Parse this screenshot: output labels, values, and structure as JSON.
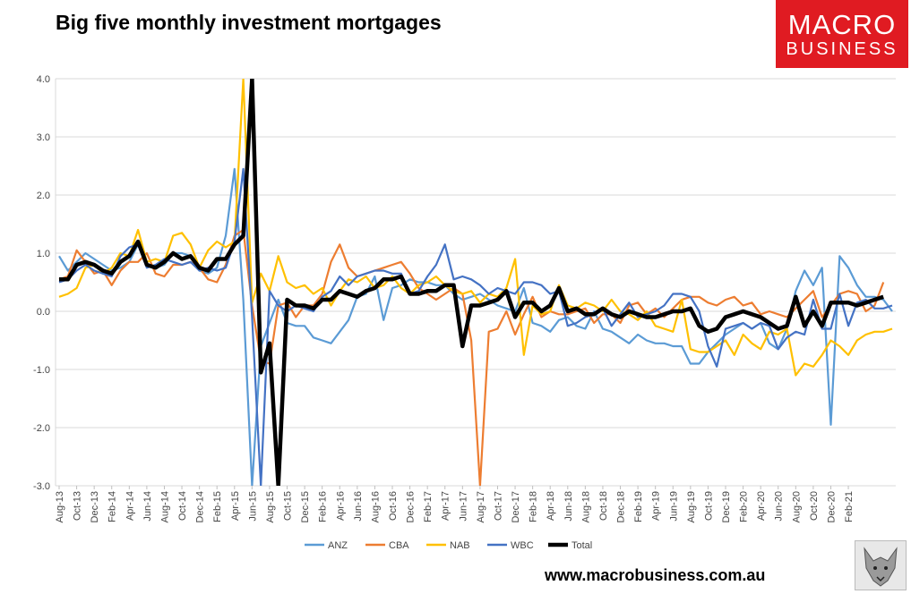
{
  "header": {
    "title": "Big five monthly investment mortgages"
  },
  "logo": {
    "line1": "MACRO",
    "line2": "BUSINESS"
  },
  "footer": {
    "url": "www.macrobusiness.com.au"
  },
  "colors": {
    "ANZ": "#5b9bd5",
    "CBA": "#ed7d31",
    "NAB": "#ffc000",
    "WBC": "#4472c4",
    "Total": "#000000",
    "logo_bg": "#e01b22"
  },
  "chart_data": {
    "type": "line",
    "title": "Big five monthly investment mortgages",
    "xlabel": "",
    "ylabel": "",
    "ylim": [
      -3.0,
      4.0
    ],
    "yticks": [
      "4.0",
      "3.0",
      "2.0",
      "1.0",
      "0.0",
      "-1.0",
      "-2.0",
      "-3.0"
    ],
    "grid": true,
    "legend_position": "bottom",
    "x_tick_labels": [
      "Aug-13",
      "Oct-13",
      "Dec-13",
      "Feb-14",
      "Apr-14",
      "Jun-14",
      "Aug-14",
      "Oct-14",
      "Dec-14",
      "Feb-15",
      "Apr-15",
      "Jun-15",
      "Aug-15",
      "Oct-15",
      "Dec-15",
      "Feb-16",
      "Apr-16",
      "Jun-16",
      "Aug-16",
      "Oct-16",
      "Dec-16",
      "Feb-17",
      "Apr-17",
      "Jun-17",
      "Aug-17",
      "Oct-17",
      "Dec-17",
      "Feb-18",
      "Apr-18",
      "Jun-18",
      "Aug-18",
      "Oct-18",
      "Dec-18",
      "Feb-19",
      "Apr-19",
      "Jun-19",
      "Aug-19",
      "Oct-19",
      "Dec-19",
      "Feb-20",
      "Apr-20",
      "Jun-20",
      "Aug-20",
      "Oct-20",
      "Dec-20",
      "Feb-21"
    ],
    "series": [
      {
        "name": "ANZ",
        "values": [
          0.95,
          0.7,
          0.85,
          1.0,
          0.9,
          0.8,
          0.7,
          0.75,
          0.85,
          1.15,
          0.8,
          0.75,
          0.8,
          1.0,
          1.0,
          0.95,
          0.7,
          0.65,
          0.75,
          1.3,
          2.45,
          0.2,
          -3.0,
          -0.6,
          -0.2,
          0.2,
          -0.2,
          -0.25,
          -0.25,
          -0.45,
          -0.5,
          -0.55,
          -0.35,
          -0.15,
          0.25,
          0.3,
          0.6,
          -0.15,
          0.4,
          0.45,
          0.55,
          0.5,
          0.5,
          0.45,
          0.45,
          0.3,
          0.2,
          0.25,
          0.3,
          0.2,
          0.1,
          0.05,
          0.0,
          0.4,
          -0.2,
          -0.25,
          -0.35,
          -0.15,
          -0.1,
          -0.25,
          -0.3,
          0.0,
          -0.3,
          -0.35,
          -0.45,
          -0.55,
          -0.4,
          -0.5,
          -0.55,
          -0.55,
          -0.6,
          -0.6,
          -0.9,
          -0.9,
          -0.7,
          -0.55,
          -0.4,
          -0.3,
          -0.2,
          -0.3,
          -0.2,
          -0.55,
          -0.65,
          -0.3,
          0.35,
          0.7,
          0.45,
          0.75,
          -1.95,
          0.95,
          0.75,
          0.45,
          0.25,
          0.25,
          0.2,
          0.0
        ]
      },
      {
        "name": "CBA",
        "values": [
          0.55,
          0.6,
          1.05,
          0.85,
          0.65,
          0.7,
          0.45,
          0.7,
          0.85,
          0.85,
          1.0,
          0.65,
          0.6,
          0.8,
          0.8,
          0.85,
          0.75,
          0.55,
          0.5,
          0.8,
          1.3,
          1.4,
          0.1,
          -0.85,
          -0.9,
          0.1,
          0.15,
          -0.1,
          0.1,
          0.1,
          0.3,
          0.85,
          1.15,
          0.75,
          0.6,
          0.65,
          0.7,
          0.75,
          0.8,
          0.85,
          0.65,
          0.4,
          0.3,
          0.2,
          0.3,
          0.4,
          0.3,
          -0.5,
          -3.0,
          -0.35,
          -0.3,
          0.0,
          -0.4,
          -0.05,
          0.25,
          -0.1,
          0.0,
          -0.05,
          -0.05,
          0.0,
          0.05,
          -0.2,
          -0.05,
          -0.05,
          -0.2,
          0.1,
          0.15,
          -0.05,
          0.05,
          -0.1,
          0.05,
          0.2,
          0.25,
          0.25,
          0.15,
          0.1,
          0.2,
          0.25,
          0.1,
          0.15,
          -0.05,
          0.0,
          -0.05,
          -0.1,
          0.05,
          0.2,
          0.35,
          -0.1,
          0.1,
          0.3,
          0.35,
          0.3,
          0.0,
          0.1,
          0.5
        ]
      },
      {
        "name": "NAB",
        "values": [
          0.25,
          0.3,
          0.4,
          0.75,
          0.8,
          0.65,
          0.75,
          1.0,
          0.95,
          1.4,
          0.85,
          0.9,
          0.85,
          1.3,
          1.35,
          1.15,
          0.75,
          1.05,
          1.2,
          1.1,
          1.2,
          4.0,
          0.15,
          0.65,
          0.35,
          0.95,
          0.5,
          0.4,
          0.45,
          0.3,
          0.4,
          0.1,
          0.35,
          0.55,
          0.5,
          0.6,
          0.4,
          0.45,
          0.6,
          0.4,
          0.3,
          0.45,
          0.5,
          0.6,
          0.45,
          0.35,
          0.3,
          0.35,
          0.15,
          0.3,
          0.25,
          0.4,
          0.9,
          -0.75,
          0.1,
          -0.05,
          0.0,
          0.45,
          0.1,
          0.05,
          0.15,
          0.1,
          0.0,
          0.2,
          0.0,
          -0.05,
          -0.15,
          0.0,
          -0.25,
          -0.3,
          -0.35,
          0.2,
          -0.65,
          -0.7,
          -0.7,
          -0.6,
          -0.5,
          -0.75,
          -0.4,
          -0.55,
          -0.65,
          -0.35,
          -0.4,
          -0.3,
          -1.1,
          -0.9,
          -0.95,
          -0.75,
          -0.5,
          -0.6,
          -0.75,
          -0.5,
          -0.4,
          -0.35,
          -0.35,
          -0.3
        ]
      },
      {
        "name": "WBC",
        "values": [
          0.5,
          0.55,
          0.7,
          0.8,
          0.7,
          0.65,
          0.6,
          0.95,
          1.1,
          1.15,
          0.75,
          0.8,
          0.9,
          0.85,
          0.8,
          0.85,
          0.7,
          0.75,
          0.7,
          0.75,
          1.2,
          2.45,
          -0.1,
          -3.0,
          0.35,
          0.1,
          0.0,
          0.1,
          0.05,
          0.0,
          0.25,
          0.35,
          0.6,
          0.45,
          0.6,
          0.65,
          0.7,
          0.7,
          0.65,
          0.65,
          0.3,
          0.35,
          0.6,
          0.8,
          1.15,
          0.55,
          0.6,
          0.55,
          0.45,
          0.3,
          0.4,
          0.35,
          0.3,
          0.5,
          0.5,
          0.45,
          0.3,
          0.35,
          -0.25,
          -0.2,
          -0.1,
          -0.05,
          0.05,
          -0.25,
          -0.05,
          0.15,
          -0.1,
          -0.05,
          0.0,
          0.1,
          0.3,
          0.3,
          0.25,
          0.0,
          -0.6,
          -0.95,
          -0.3,
          -0.25,
          -0.2,
          -0.3,
          -0.2,
          -0.25,
          -0.65,
          -0.45,
          -0.35,
          -0.4,
          0.2,
          -0.3,
          -0.3,
          0.3,
          -0.25,
          0.15,
          0.2,
          0.05,
          0.05,
          0.1
        ]
      },
      {
        "name": "Total",
        "values": [
          0.55,
          0.55,
          0.8,
          0.85,
          0.8,
          0.7,
          0.65,
          0.85,
          0.95,
          1.2,
          0.8,
          0.75,
          0.85,
          1.0,
          0.9,
          0.95,
          0.75,
          0.7,
          0.9,
          0.9,
          1.15,
          1.3,
          4.0,
          -1.05,
          -0.55,
          -3.0,
          0.2,
          0.1,
          0.1,
          0.05,
          0.2,
          0.2,
          0.35,
          0.3,
          0.25,
          0.35,
          0.4,
          0.55,
          0.55,
          0.6,
          0.3,
          0.3,
          0.35,
          0.35,
          0.45,
          0.45,
          -0.6,
          0.1,
          0.1,
          0.15,
          0.2,
          0.35,
          -0.1,
          0.15,
          0.15,
          0.0,
          0.1,
          0.4,
          0.0,
          0.05,
          -0.05,
          -0.05,
          0.05,
          -0.05,
          -0.1,
          0.0,
          -0.05,
          -0.1,
          -0.1,
          -0.05,
          0.0,
          0.0,
          0.05,
          -0.25,
          -0.35,
          -0.3,
          -0.1,
          -0.05,
          0.0,
          -0.05,
          -0.1,
          -0.2,
          -0.3,
          -0.25,
          0.25,
          -0.25,
          0.0,
          -0.25,
          0.15,
          0.15,
          0.15,
          0.1,
          0.15,
          0.2,
          0.25
        ]
      }
    ]
  }
}
